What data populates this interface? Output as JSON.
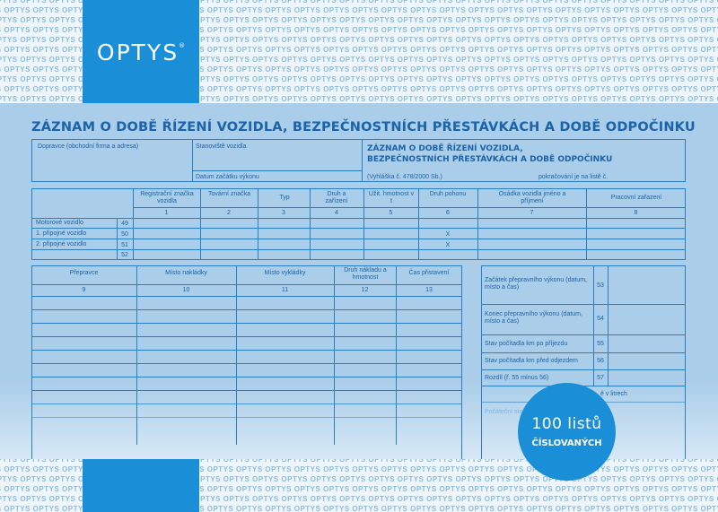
{
  "brand": {
    "logo": "OPTYS",
    "registered_mark": "®",
    "pattern_word": "OPTYS"
  },
  "document": {
    "title": "ZÁZNAM O DOBĚ ŘÍZENÍ VOZIDLA, BEZPEČNOSTNÍCH PŘESTÁVKÁCH A DOBĚ ODPOČINKU",
    "carrier_label": "Dopravce (obchodní firma a adresa)",
    "vehicle_station_label": "Stanoviště vozidla",
    "start_date_label": "Datum začátku výkonu",
    "box_title_line1": "ZÁZNAM O DOBĚ ŘÍZENÍ VOZIDLA,",
    "box_title_line2": "BEZPEČNOSTNÍCH PŘESTÁVKÁCH A DOBĚ ODPOČINKU",
    "regulation": "(Vyhláška č. 478/2000 Sb.)",
    "continued_label": "pokračování je na listě č."
  },
  "vehicle_table": {
    "headers": [
      "Registrační značka vozidla",
      "Tovární značka",
      "Typ",
      "Druh a zařízení",
      "Užit. hmotnost v t",
      "Druh pohonu",
      "Osádka vozidla jméno a příjmení",
      "Pracovní zařazení"
    ],
    "column_numbers": [
      "1",
      "2",
      "3",
      "4",
      "5",
      "6",
      "7",
      "8"
    ],
    "rows": [
      {
        "label": "Motorové vozidlo",
        "code": "49",
        "pohon": ""
      },
      {
        "label": "1. připojné vozidlo",
        "code": "50",
        "pohon": "X"
      },
      {
        "label": "2. připojné vozidlo",
        "code": "51",
        "pohon": "X"
      },
      {
        "label": "",
        "code": "52",
        "pohon": ""
      }
    ]
  },
  "transport_table": {
    "headers": [
      "Přepravce",
      "Místo nakládky",
      "Místo vykládky",
      "Druh nákladu a hmotnost",
      "Čas přistavení"
    ],
    "column_numbers": [
      "9",
      "10",
      "11",
      "12",
      "13"
    ]
  },
  "side_table": {
    "rows": [
      {
        "label": "Začátek přepravního výkonu (datum, místo a čas)",
        "code": "53"
      },
      {
        "label": "Konec přepravního výkonu (datum, místo a čas)",
        "code": "54"
      },
      {
        "label": "Stav počítadla km po příjezdu",
        "code": "55"
      },
      {
        "label": "Stav počítadla km před odjezdem",
        "code": "56"
      },
      {
        "label": "Rozdíl (ř. 55 mínus 56)",
        "code": "57"
      }
    ],
    "partial_fuel_label": "ě v litrech",
    "partial_counter_label": "Počáteční stav"
  },
  "badge": {
    "count": "100 listů",
    "subtitle": "ČÍSLOVANÝCH"
  },
  "colors": {
    "sheet": "#aacde9",
    "brand_blue": "#1a8fd8",
    "line": "#2d7dc2",
    "text": "#1b64a8"
  }
}
